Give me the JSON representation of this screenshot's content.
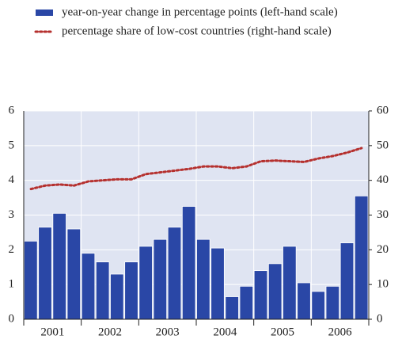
{
  "chart_data": {
    "type": "bar-line",
    "legend": [
      "year-on-year change in percentage points (left-hand scale)",
      "percentage share of low-cost countries (right-hand scale)"
    ],
    "year_labels": [
      "2001",
      "2002",
      "2003",
      "2004",
      "2005",
      "2006"
    ],
    "series": [
      {
        "name": "year-on-year change in percentage points (left-hand scale)",
        "color": "#2a47a6",
        "axis": "y",
        "values": [
          2.25,
          2.65,
          3.05,
          2.6,
          1.9,
          1.65,
          1.3,
          1.65,
          2.1,
          2.3,
          2.65,
          3.25,
          2.3,
          2.05,
          0.65,
          0.95,
          1.4,
          1.6,
          2.1,
          1.05,
          0.8,
          0.95,
          2.2,
          3.55
        ]
      },
      {
        "name": "percentage share of low-cost countries (right-hand scale)",
        "color": "#b5302e",
        "axis": "y2",
        "values": [
          37.5,
          38.5,
          38.8,
          38.5,
          39.7,
          40.0,
          40.3,
          40.3,
          41.8,
          42.3,
          42.8,
          43.3,
          44.0,
          44.0,
          43.5,
          44.0,
          45.5,
          45.7,
          45.5,
          45.3,
          46.3,
          47.0,
          48.0,
          49.3
        ]
      }
    ],
    "ylim": [
      0,
      6
    ],
    "yticks": [
      0,
      1,
      2,
      3,
      4,
      5,
      6
    ],
    "y2lim": [
      0,
      60
    ],
    "y2ticks": [
      0,
      10,
      20,
      30,
      40,
      50,
      60
    ],
    "grid": true
  }
}
